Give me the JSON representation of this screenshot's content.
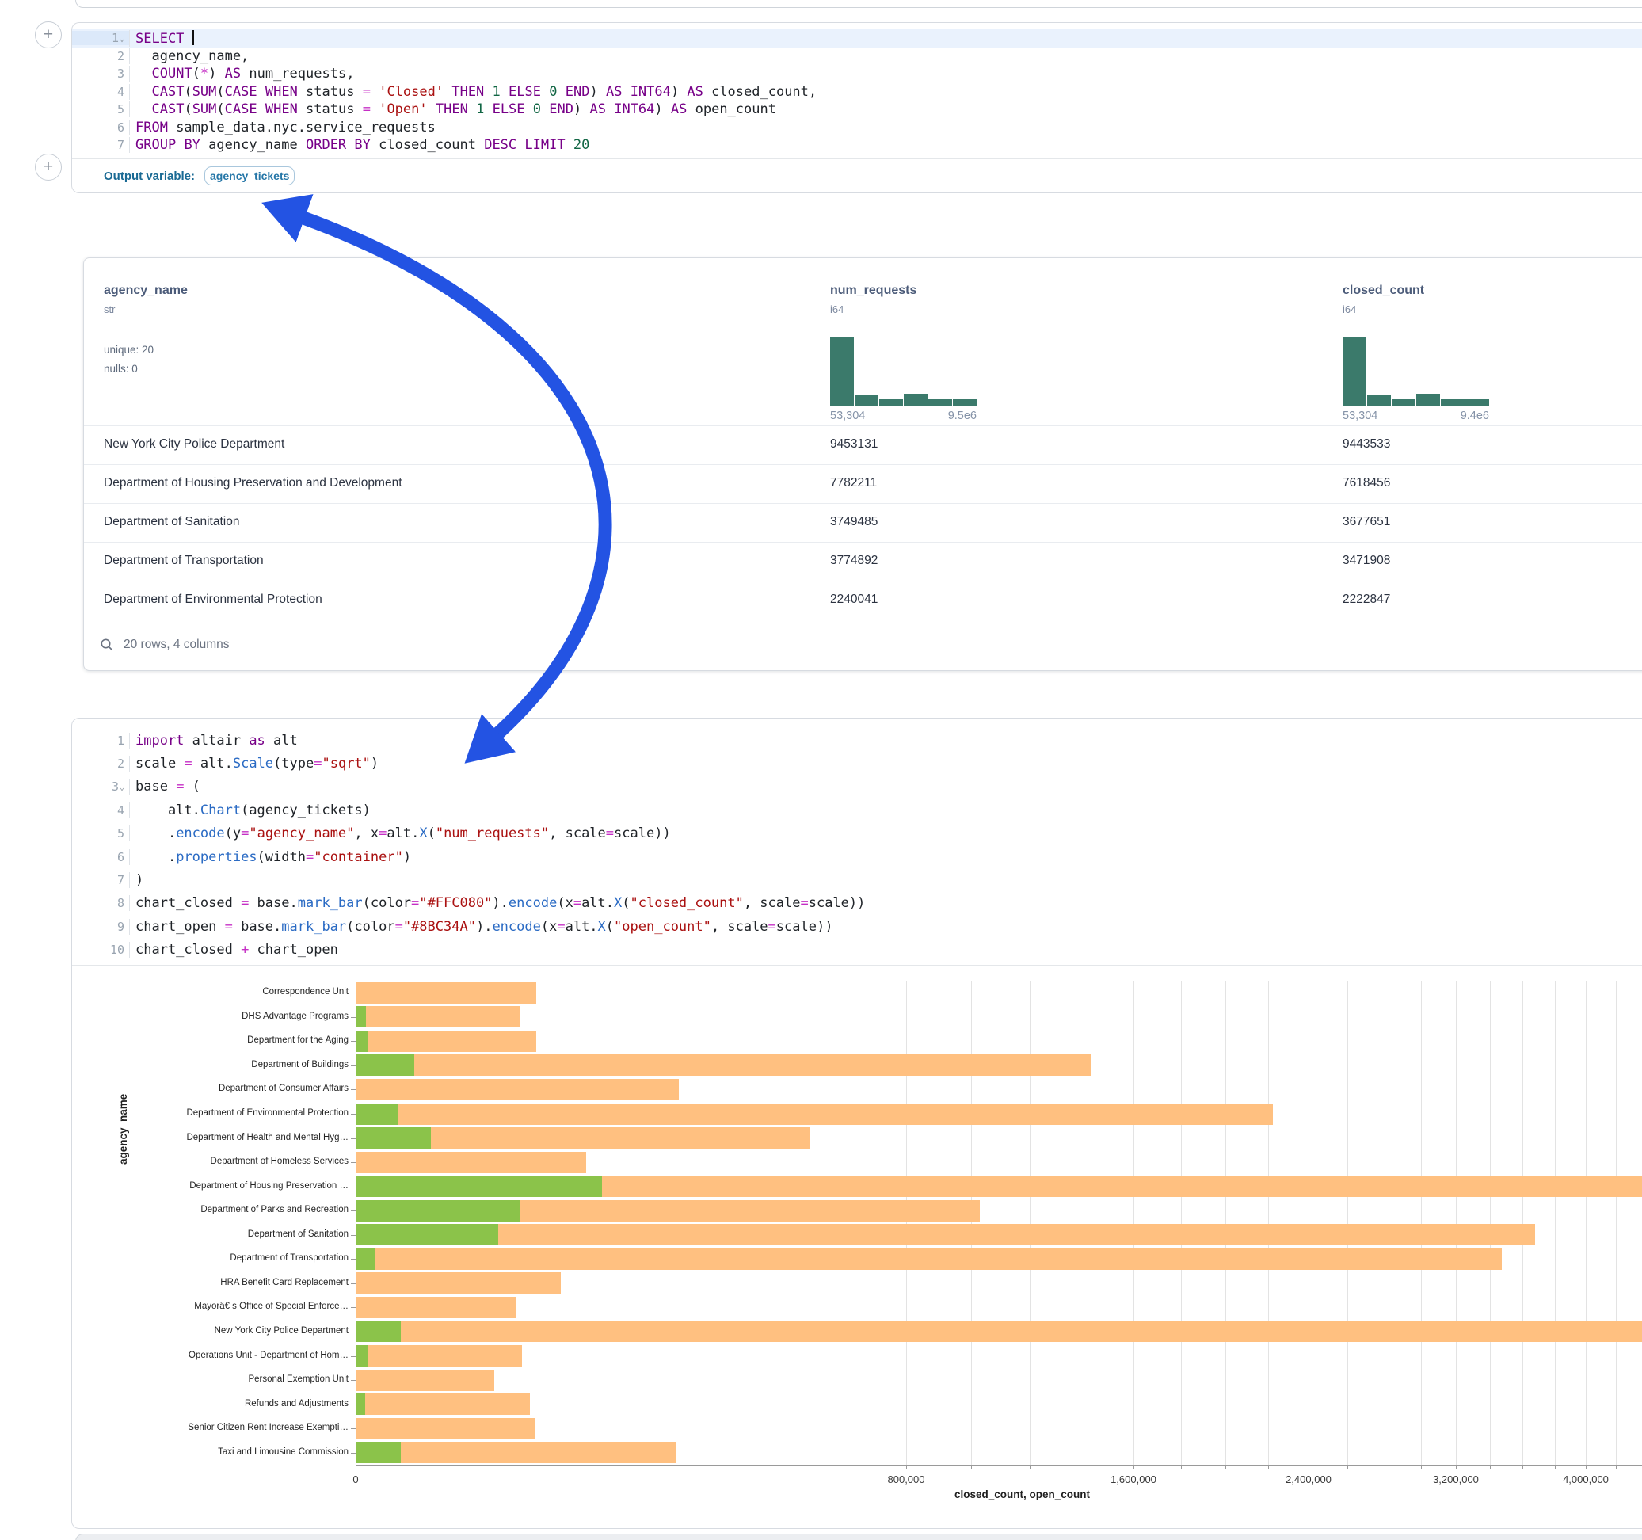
{
  "colors": {
    "arrow": "#2353e3",
    "histogram": "#3b7a6b",
    "bar_closed": "#FFC080",
    "bar_open": "#8BC34A"
  },
  "sql_cell": {
    "lines": [
      {
        "num": "1",
        "active": true,
        "fold": true,
        "cursor": true,
        "tokens": [
          [
            "kw",
            "SELECT"
          ],
          [
            "pl",
            " "
          ]
        ]
      },
      {
        "num": "2",
        "tokens": [
          [
            "pl",
            "  agency_name,"
          ]
        ]
      },
      {
        "num": "3",
        "tokens": [
          [
            "pl",
            "  "
          ],
          [
            "kw",
            "COUNT"
          ],
          [
            "pl",
            "("
          ],
          [
            "op",
            "*"
          ],
          [
            "pl",
            ") "
          ],
          [
            "kw",
            "AS"
          ],
          [
            "pl",
            " num_requests,"
          ]
        ]
      },
      {
        "num": "4",
        "tokens": [
          [
            "pl",
            "  "
          ],
          [
            "kw",
            "CAST"
          ],
          [
            "pl",
            "("
          ],
          [
            "kw",
            "SUM"
          ],
          [
            "pl",
            "("
          ],
          [
            "kw",
            "CASE"
          ],
          [
            "pl",
            " "
          ],
          [
            "kw",
            "WHEN"
          ],
          [
            "pl",
            " status "
          ],
          [
            "op",
            "="
          ],
          [
            "pl",
            " "
          ],
          [
            "str",
            "'Closed'"
          ],
          [
            "pl",
            " "
          ],
          [
            "kw",
            "THEN"
          ],
          [
            "pl",
            " "
          ],
          [
            "num",
            "1"
          ],
          [
            "pl",
            " "
          ],
          [
            "kw",
            "ELSE"
          ],
          [
            "pl",
            " "
          ],
          [
            "num",
            "0"
          ],
          [
            "pl",
            " "
          ],
          [
            "kw",
            "END"
          ],
          [
            "pl",
            ") "
          ],
          [
            "kw",
            "AS"
          ],
          [
            "pl",
            " "
          ],
          [
            "kw",
            "INT64"
          ],
          [
            "pl",
            ") "
          ],
          [
            "kw",
            "AS"
          ],
          [
            "pl",
            " closed_count,"
          ]
        ]
      },
      {
        "num": "5",
        "tokens": [
          [
            "pl",
            "  "
          ],
          [
            "kw",
            "CAST"
          ],
          [
            "pl",
            "("
          ],
          [
            "kw",
            "SUM"
          ],
          [
            "pl",
            "("
          ],
          [
            "kw",
            "CASE"
          ],
          [
            "pl",
            " "
          ],
          [
            "kw",
            "WHEN"
          ],
          [
            "pl",
            " status "
          ],
          [
            "op",
            "="
          ],
          [
            "pl",
            " "
          ],
          [
            "str",
            "'Open'"
          ],
          [
            "pl",
            " "
          ],
          [
            "kw",
            "THEN"
          ],
          [
            "pl",
            " "
          ],
          [
            "num",
            "1"
          ],
          [
            "pl",
            " "
          ],
          [
            "kw",
            "ELSE"
          ],
          [
            "pl",
            " "
          ],
          [
            "num",
            "0"
          ],
          [
            "pl",
            " "
          ],
          [
            "kw",
            "END"
          ],
          [
            "pl",
            ") "
          ],
          [
            "kw",
            "AS"
          ],
          [
            "pl",
            " "
          ],
          [
            "kw",
            "INT64"
          ],
          [
            "pl",
            ") "
          ],
          [
            "kw",
            "AS"
          ],
          [
            "pl",
            " open_count"
          ]
        ]
      },
      {
        "num": "6",
        "tokens": [
          [
            "kw",
            "FROM"
          ],
          [
            "pl",
            " sample_data.nyc.service_requests"
          ]
        ]
      },
      {
        "num": "7",
        "tokens": [
          [
            "kw",
            "GROUP"
          ],
          [
            "pl",
            " "
          ],
          [
            "kw",
            "BY"
          ],
          [
            "pl",
            " agency_name "
          ],
          [
            "kw",
            "ORDER"
          ],
          [
            "pl",
            " "
          ],
          [
            "kw",
            "BY"
          ],
          [
            "pl",
            " closed_count "
          ],
          [
            "kw",
            "DESC"
          ],
          [
            "pl",
            " "
          ],
          [
            "kw",
            "LIMIT"
          ],
          [
            "pl",
            " "
          ],
          [
            "num",
            "20"
          ]
        ]
      }
    ],
    "output_label": "Output variable:",
    "output_chip": "agency_tickets"
  },
  "table": {
    "columns": [
      {
        "name": "agency_name",
        "type": "str",
        "stats": [
          "unique: 20",
          "nulls: 0"
        ]
      },
      {
        "name": "num_requests",
        "type": "i64",
        "hist": {
          "fractions": [
            1,
            0.17,
            0.1,
            0.18,
            0.1,
            0.1
          ],
          "min": "53,304",
          "max": "9.5e6"
        }
      },
      {
        "name": "closed_count",
        "type": "i64",
        "hist": {
          "fractions": [
            1,
            0.17,
            0.1,
            0.18,
            0.1,
            0.1
          ],
          "min": "53,304",
          "max": "9.4e6"
        }
      }
    ],
    "rows": [
      [
        "New York City Police Department",
        "9453131",
        "9443533"
      ],
      [
        "Department of Housing Preservation and Development",
        "7782211",
        "7618456"
      ],
      [
        "Department of Sanitation",
        "3749485",
        "3677651"
      ],
      [
        "Department of Transportation",
        "3774892",
        "3471908"
      ],
      [
        "Department of Environmental Protection",
        "2240041",
        "2222847"
      ]
    ],
    "footer": "20 rows, 4 columns"
  },
  "python_cell": {
    "lines": [
      {
        "num": "1",
        "tokens": [
          [
            "kw",
            "import"
          ],
          [
            "pl",
            " altair "
          ],
          [
            "kw",
            "as"
          ],
          [
            "pl",
            " alt"
          ]
        ]
      },
      {
        "num": "2",
        "tokens": [
          [
            "pl",
            "scale "
          ],
          [
            "op",
            "="
          ],
          [
            "pl",
            " alt."
          ],
          [
            "fn",
            "Scale"
          ],
          [
            "pl",
            "(type"
          ],
          [
            "op",
            "="
          ],
          [
            "str",
            "\"sqrt\""
          ],
          [
            "pl",
            ")"
          ]
        ]
      },
      {
        "num": "3",
        "fold": true,
        "tokens": [
          [
            "pl",
            "base "
          ],
          [
            "op",
            "="
          ],
          [
            "pl",
            " ("
          ]
        ]
      },
      {
        "num": "4",
        "tokens": [
          [
            "pl",
            "    alt."
          ],
          [
            "fn",
            "Chart"
          ],
          [
            "pl",
            "(agency_tickets)"
          ]
        ]
      },
      {
        "num": "5",
        "tokens": [
          [
            "pl",
            "    ."
          ],
          [
            "fn",
            "encode"
          ],
          [
            "pl",
            "(y"
          ],
          [
            "op",
            "="
          ],
          [
            "str",
            "\"agency_name\""
          ],
          [
            "pl",
            ", x"
          ],
          [
            "op",
            "="
          ],
          [
            "pl",
            "alt."
          ],
          [
            "fn",
            "X"
          ],
          [
            "pl",
            "("
          ],
          [
            "str",
            "\"num_requests\""
          ],
          [
            "pl",
            ", scale"
          ],
          [
            "op",
            "="
          ],
          [
            "pl",
            "scale))"
          ]
        ]
      },
      {
        "num": "6",
        "tokens": [
          [
            "pl",
            "    ."
          ],
          [
            "fn",
            "properties"
          ],
          [
            "pl",
            "(width"
          ],
          [
            "op",
            "="
          ],
          [
            "str",
            "\"container\""
          ],
          [
            "pl",
            ")"
          ]
        ]
      },
      {
        "num": "7",
        "tokens": [
          [
            "pl",
            ")"
          ]
        ]
      },
      {
        "num": "8",
        "tokens": [
          [
            "pl",
            "chart_closed "
          ],
          [
            "op",
            "="
          ],
          [
            "pl",
            " base."
          ],
          [
            "fn",
            "mark_bar"
          ],
          [
            "pl",
            "(color"
          ],
          [
            "op",
            "="
          ],
          [
            "str",
            "\"#FFC080\""
          ],
          [
            "pl",
            ")."
          ],
          [
            "fn",
            "encode"
          ],
          [
            "pl",
            "(x"
          ],
          [
            "op",
            "="
          ],
          [
            "pl",
            "alt."
          ],
          [
            "fn",
            "X"
          ],
          [
            "pl",
            "("
          ],
          [
            "str",
            "\"closed_count\""
          ],
          [
            "pl",
            ", scale"
          ],
          [
            "op",
            "="
          ],
          [
            "pl",
            "scale))"
          ]
        ]
      },
      {
        "num": "9",
        "tokens": [
          [
            "pl",
            "chart_open "
          ],
          [
            "op",
            "="
          ],
          [
            "pl",
            " base."
          ],
          [
            "fn",
            "mark_bar"
          ],
          [
            "pl",
            "(color"
          ],
          [
            "op",
            "="
          ],
          [
            "str",
            "\"#8BC34A\""
          ],
          [
            "pl",
            ")."
          ],
          [
            "fn",
            "encode"
          ],
          [
            "pl",
            "(x"
          ],
          [
            "op",
            "="
          ],
          [
            "pl",
            "alt."
          ],
          [
            "fn",
            "X"
          ],
          [
            "pl",
            "("
          ],
          [
            "str",
            "\"open_count\""
          ],
          [
            "pl",
            ", scale"
          ],
          [
            "op",
            "="
          ],
          [
            "pl",
            "scale))"
          ]
        ]
      },
      {
        "num": "10",
        "tokens": [
          [
            "pl",
            "chart_closed "
          ],
          [
            "op",
            "+"
          ],
          [
            "pl",
            " chart_open"
          ]
        ]
      }
    ]
  },
  "chart_data": {
    "type": "bar",
    "orientation": "horizontal",
    "x_scale": "sqrt",
    "grid": true,
    "grid_step": 200000,
    "xlabel": "closed_count, open_count",
    "ylabel": "agency_name",
    "x_ticks": [
      {
        "v": 0,
        "label": "0"
      },
      {
        "v": 800000,
        "label": "800,000"
      },
      {
        "v": 1600000,
        "label": "1,600,000"
      },
      {
        "v": 2400000,
        "label": "2,400,000"
      },
      {
        "v": 3200000,
        "label": "3,200,000"
      },
      {
        "v": 4000000,
        "label": "4,000,000"
      }
    ],
    "x_visible_max": 4380000,
    "categories": [
      "Correspondence Unit",
      "DHS Advantage Programs",
      "Department for the Aging",
      "Department of Buildings",
      "Department of Consumer Affairs",
      "Department of Environmental Protection",
      "Department of Health and Mental Hyg…",
      "Department of Homeless Services",
      "Department of Housing Preservation …",
      "Department of Parks and Recreation",
      "Department of Sanitation",
      "Department of Transportation",
      "HRA Benefit Card Replacement",
      "Mayorâ€ s Office of Special Enforce…",
      "New York City Police Department",
      "Operations Unit - Department of Hom…",
      "Personal Exemption Unit",
      "Refunds and Adjustments",
      "Senior Citizen Rent Increase Exempti…",
      "Taxi and Limousine Commission"
    ],
    "series": [
      {
        "name": "closed_count",
        "color": "#FFC080",
        "values": [
          86000,
          71000,
          86000,
          1430000,
          276000,
          2222847,
          547000,
          140000,
          7618456,
          1030000,
          3677651,
          3471908,
          111000,
          68000,
          9443533,
          73000,
          51000,
          80000,
          85000,
          272000
        ]
      },
      {
        "name": "open_count",
        "color": "#8BC34A",
        "values": [
          0,
          300,
          400,
          9100,
          0,
          4700,
          15000,
          0,
          160000,
          71000,
          54000,
          1000,
          0,
          0,
          5400,
          400,
          0,
          240,
          0,
          5400
        ]
      }
    ]
  }
}
